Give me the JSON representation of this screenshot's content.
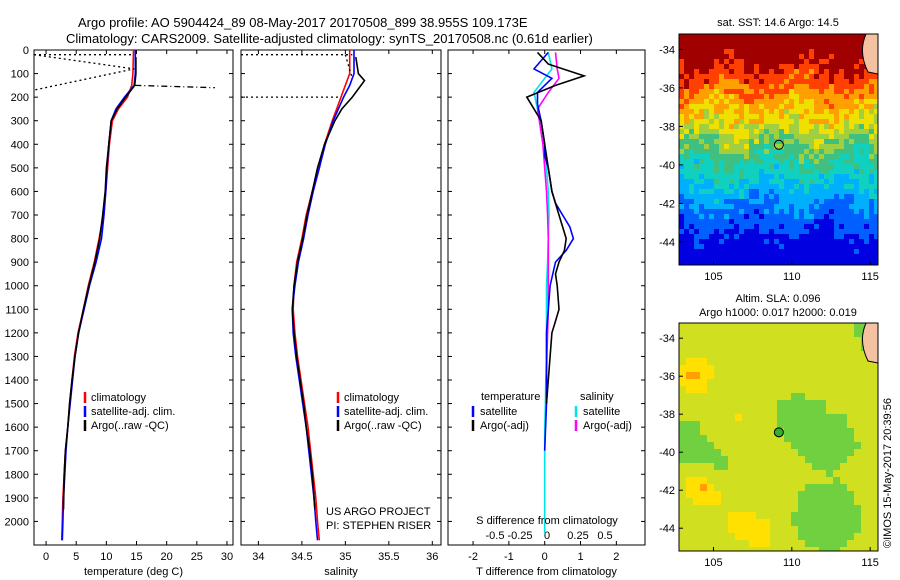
{
  "header": {
    "line1": "Argo profile: AO 5904424_89 08-May-2017 20170508_899 38.955S 109.173E",
    "line2": "Climatology: CARS2009. Satellite-adjusted climatology: synTS_20170508.nc (0.61d earlier)"
  },
  "credit": {
    "project": "US ARGO PROJECT",
    "pi": "PI: STEPHEN RISER",
    "stamp": "©IMOS 15-May-2017 20:39:56"
  },
  "colors": {
    "climatology": "#ff0000",
    "satellite": "#0000ff",
    "argo": "#000000",
    "sat_salinity": "#00e5e5",
    "argo_salinity": "#ff00ff"
  },
  "chart_data": [
    {
      "type": "line",
      "id": "temperature",
      "xlabel": "temperature (deg C)",
      "xlim": [
        -2,
        31
      ],
      "ylim": [
        2100,
        0
      ],
      "xticks": [
        0,
        5,
        10,
        15,
        20,
        25,
        30
      ],
      "yticks": [
        0,
        100,
        200,
        300,
        400,
        500,
        600,
        700,
        800,
        900,
        1000,
        1100,
        1200,
        1300,
        1400,
        1500,
        1600,
        1700,
        1800,
        1900,
        2000
      ],
      "legend": [
        {
          "label": "climatology",
          "color": "#ff0000"
        },
        {
          "label": "satellite-adj. clim.",
          "color": "#0000ff"
        },
        {
          "label": "Argo(..raw -QC)",
          "color": "#000000"
        }
      ],
      "series": [
        {
          "color": "#ff0000",
          "x": [
            14.5,
            14.4,
            14.2,
            13.5,
            12.0,
            11.0,
            10.5,
            10.2,
            9.9,
            9.5,
            8.8,
            8.0,
            7.0,
            6.2,
            5.3,
            4.7,
            4.3,
            3.9,
            3.6,
            3.2,
            3.0,
            2.8,
            2.7,
            2.6
          ],
          "y": [
            0,
            100,
            150,
            200,
            250,
            300,
            400,
            500,
            600,
            700,
            800,
            900,
            1000,
            1100,
            1200,
            1300,
            1400,
            1500,
            1600,
            1700,
            1800,
            1900,
            2000,
            2080
          ]
        },
        {
          "color": "#0000ff",
          "x": [
            14.8,
            14.8,
            14.6,
            13.0,
            11.6,
            10.8,
            10.4,
            10.1,
            9.9,
            9.6,
            9.2,
            8.3,
            7.2,
            6.3,
            5.4,
            4.8,
            4.4,
            4.0,
            3.6,
            3.3,
            3.1,
            2.9,
            2.8,
            2.7
          ],
          "y": [
            0,
            100,
            150,
            200,
            250,
            300,
            400,
            500,
            600,
            700,
            800,
            900,
            1000,
            1100,
            1200,
            1300,
            1400,
            1500,
            1600,
            1700,
            1800,
            1900,
            2000,
            2080
          ]
        },
        {
          "color": "#000000",
          "x": [
            14.9,
            14.9,
            14.7,
            13.2,
            11.8,
            10.8,
            10.4,
            10.0,
            9.8,
            9.4,
            8.9,
            8.1,
            7.1,
            6.2,
            5.4,
            4.8,
            4.3,
            3.9,
            3.6,
            3.2,
            3.0,
            2.9
          ],
          "y": [
            30,
            100,
            150,
            200,
            250,
            300,
            400,
            500,
            600,
            700,
            800,
            900,
            1000,
            1100,
            1200,
            1300,
            1400,
            1500,
            1600,
            1700,
            1800,
            1950
          ]
        },
        {
          "color": "#000000",
          "dash": "2,3",
          "x": [
            -2,
            14.6,
            -2
          ],
          "y": [
            20,
            80,
            170
          ]
        },
        {
          "color": "#000000",
          "dash": "2,3",
          "x": [
            -2,
            14.6
          ],
          "y": [
            20,
            20
          ]
        },
        {
          "color": "#000000",
          "dash": "6,3,1,3",
          "x": [
            14.8,
            28.0
          ],
          "y": [
            150,
            160
          ]
        }
      ]
    },
    {
      "type": "line",
      "id": "salinity",
      "xlabel": "salinity",
      "xlim": [
        33.8,
        36.1
      ],
      "ylim": [
        2100,
        0
      ],
      "xticks": [
        34,
        34.5,
        35,
        35.5,
        36
      ],
      "legend": [
        {
          "label": "climatology",
          "color": "#ff0000"
        },
        {
          "label": "satellite-adj. clim.",
          "color": "#0000ff"
        },
        {
          "label": "Argo(..raw -QC)",
          "color": "#000000"
        }
      ],
      "series": [
        {
          "color": "#ff0000",
          "x": [
            35.05,
            35.05,
            35.0,
            34.95,
            34.9,
            34.85,
            34.76,
            34.7,
            34.62,
            34.55,
            34.5,
            34.44,
            34.41,
            34.4,
            34.42,
            34.45,
            34.49,
            34.53,
            34.57,
            34.6,
            34.63,
            34.66,
            34.68,
            34.7
          ],
          "y": [
            0,
            100,
            150,
            200,
            250,
            300,
            400,
            500,
            600,
            700,
            800,
            900,
            1000,
            1100,
            1200,
            1300,
            1400,
            1500,
            1600,
            1700,
            1800,
            1900,
            2000,
            2080
          ]
        },
        {
          "color": "#0000ff",
          "x": [
            35.1,
            35.1,
            35.05,
            34.98,
            34.92,
            34.86,
            34.77,
            34.7,
            34.63,
            34.57,
            34.52,
            34.46,
            34.42,
            34.39,
            34.4,
            34.43,
            34.47,
            34.51,
            34.55,
            34.58,
            34.61,
            34.64,
            34.66,
            34.68
          ],
          "y": [
            0,
            100,
            150,
            200,
            250,
            300,
            400,
            500,
            600,
            700,
            800,
            900,
            1000,
            1100,
            1200,
            1300,
            1400,
            1500,
            1600,
            1700,
            1800,
            1900,
            2000,
            2080
          ]
        },
        {
          "color": "#000000",
          "x": [
            35.12,
            35.15,
            35.22,
            35.08,
            34.96,
            34.88,
            34.76,
            34.68,
            34.62,
            34.56,
            34.51,
            34.45,
            34.41,
            34.39,
            34.41,
            34.44,
            34.48,
            34.52,
            34.55,
            34.59,
            34.62,
            34.65
          ],
          "y": [
            30,
            100,
            130,
            200,
            250,
            300,
            400,
            500,
            600,
            700,
            800,
            900,
            1000,
            1100,
            1200,
            1300,
            1400,
            1500,
            1600,
            1700,
            1800,
            1950
          ]
        },
        {
          "color": "#000000",
          "dash": "2,3",
          "x": [
            33.8,
            35.08
          ],
          "y": [
            20,
            20
          ]
        },
        {
          "color": "#000000",
          "dash": "2,3",
          "x": [
            35.0,
            35.08
          ],
          "y": [
            20,
            120
          ]
        },
        {
          "color": "#000000",
          "dash": "2,3",
          "x": [
            33.8,
            34.95
          ],
          "y": [
            200,
            200
          ]
        }
      ]
    },
    {
      "type": "line",
      "id": "differences",
      "xlabel": "T difference from climatology",
      "xlabel_top": "S difference from climatology",
      "xlim": [
        -2.7,
        2.8
      ],
      "ylim": [
        2100,
        0
      ],
      "xticks": [
        -2,
        -1,
        0,
        1,
        2
      ],
      "xticks_top": [
        -0.5,
        -0.25,
        0,
        0.25,
        0.5
      ],
      "legend_titles": [
        "temperature",
        "salinity"
      ],
      "legend": [
        {
          "label": "satellite",
          "color": "#0000ff",
          "column": 0
        },
        {
          "label": "Argo(-adj)",
          "color": "#000000",
          "column": 0
        },
        {
          "label": "satellite",
          "color": "#00e5e5",
          "column": 1
        },
        {
          "label": "Argo(-adj)",
          "color": "#ff00ff",
          "column": 1
        }
      ],
      "series": [
        {
          "color": "#00e5e5",
          "x": [
            0.1,
            0.2,
            0.0,
            -0.3,
            -0.2,
            -0.1,
            0.0,
            0.05,
            0.1,
            0.12,
            0.1,
            0.08,
            0.05,
            0.05,
            0.05,
            0.05,
            0.03,
            0.02,
            0.0,
            0.0,
            0.0,
            0.0
          ],
          "y": [
            10,
            80,
            120,
            180,
            250,
            300,
            400,
            500,
            600,
            700,
            800,
            900,
            1000,
            1100,
            1200,
            1300,
            1400,
            1500,
            1600,
            1700,
            1800,
            2050
          ]
        },
        {
          "color": "#ff00ff",
          "x": [
            0.3,
            0.35,
            0.4,
            0.1,
            -0.2,
            -0.15,
            -0.05,
            0.0,
            0.05,
            0.08,
            0.1,
            0.1,
            0.1,
            0.1,
            0.08,
            0.06,
            0.05,
            0.05
          ],
          "y": [
            10,
            80,
            120,
            180,
            250,
            300,
            400,
            500,
            600,
            700,
            800,
            900,
            1000,
            1100,
            1200,
            1300,
            1400,
            1500
          ]
        },
        {
          "color": "#0000ff",
          "x": [
            0.1,
            -0.3,
            0.2,
            -0.2,
            -0.2,
            -0.1,
            0.0,
            0.0,
            0.1,
            0.2,
            0.3,
            0.5,
            0.7,
            0.8,
            0.6,
            0.3,
            0.15,
            0.1,
            0.05,
            0.05,
            0.05,
            0.0
          ],
          "y": [
            10,
            80,
            120,
            180,
            230,
            300,
            400,
            450,
            500,
            600,
            650,
            700,
            750,
            800,
            850,
            900,
            1000,
            1100,
            1200,
            1300,
            1500,
            1700
          ]
        },
        {
          "color": "#000000",
          "x": [
            -0.2,
            0.1,
            1.1,
            0.3,
            -0.5,
            -0.3,
            -0.1,
            0.0,
            0.1,
            0.2,
            0.4,
            0.6,
            0.55,
            0.4,
            0.3,
            0.35,
            0.4,
            0.3,
            0.2,
            0.15,
            0.1,
            0.05
          ],
          "y": [
            10,
            60,
            110,
            150,
            200,
            250,
            300,
            400,
            500,
            600,
            700,
            800,
            850,
            900,
            950,
            1000,
            1100,
            1150,
            1200,
            1300,
            1400,
            1500
          ]
        }
      ]
    },
    {
      "type": "heatmap",
      "id": "sst-map",
      "title": "sat. SST: 14.6  Argo: 14.5",
      "xlim": [
        102.8,
        115.5
      ],
      "ylim": [
        -45.2,
        -33.2
      ],
      "xticks": [
        105,
        110,
        115
      ],
      "yticks": [
        -34,
        -36,
        -38,
        -40,
        -42,
        -44
      ],
      "marker": {
        "lon": 109.173,
        "lat": -38.955
      }
    },
    {
      "type": "heatmap",
      "id": "sla-map",
      "title_line1": "Altim. SLA: 0.096",
      "title_line2": "Argo h1000: 0.017  h2000: 0.019",
      "xlim": [
        102.8,
        115.5
      ],
      "ylim": [
        -45.2,
        -33.2
      ],
      "xticks": [
        105,
        110,
        115
      ],
      "yticks": [
        -34,
        -36,
        -38,
        -40,
        -42,
        -44
      ],
      "marker": {
        "lon": 109.173,
        "lat": -38.955
      }
    }
  ]
}
